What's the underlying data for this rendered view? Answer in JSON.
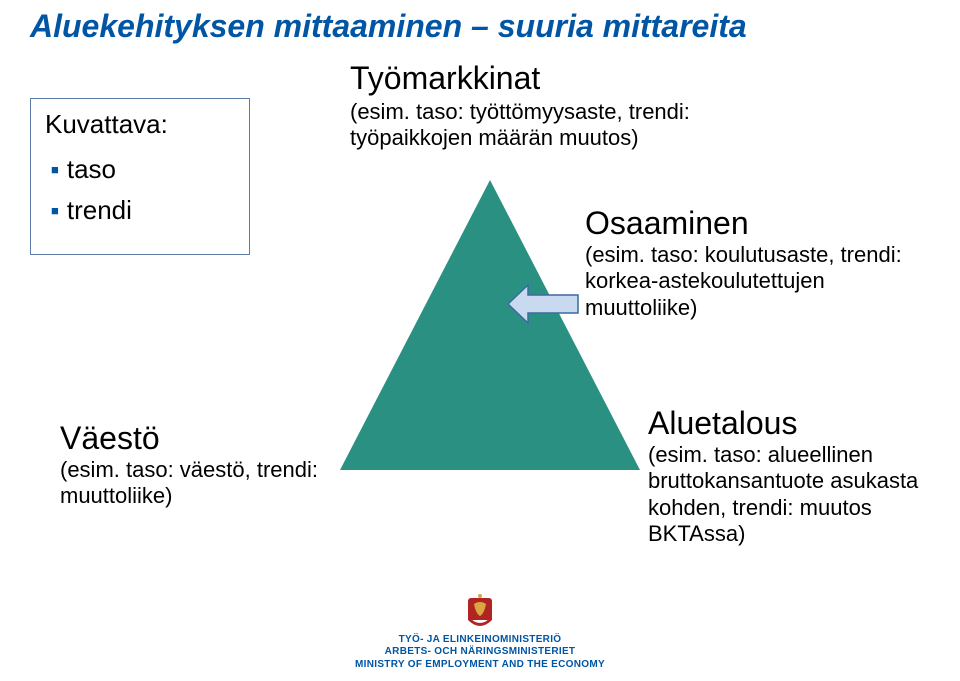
{
  "colors": {
    "title": "#0055a5",
    "bullet": "#0055a5",
    "text": "#000000",
    "box_border": "#5b7ca8",
    "triangle_fill": "#2a9182",
    "arrow_fill": "#c9d9ef",
    "arrow_border": "#3b6aa0",
    "footer_text": "#0055a5",
    "crest_gold": "#d9a63f",
    "crest_red": "#b02424",
    "background": "#ffffff"
  },
  "layout": {
    "slide_w": 960,
    "slide_h": 681,
    "triangle_base": 300,
    "triangle_height": 290
  },
  "type": "infographic",
  "title": "Aluekehityksen mittaaminen – suuria mittareita",
  "kuvattava": {
    "heading": "Kuvattava:",
    "items": [
      "taso",
      "trendi"
    ]
  },
  "tyomarkkinat": {
    "heading": "Työmarkkinat",
    "sub": "(esim. taso: työttömyysaste, trendi: työpaikkojen määrän muutos)"
  },
  "osaaminen": {
    "heading": "Osaaminen",
    "sub": "(esim. taso: koulutusaste, trendi: korkea-astekoulutettujen muuttoliike)"
  },
  "vaesto": {
    "heading": "Väestö",
    "sub": "(esim. taso: väestö, trendi: muuttoliike)"
  },
  "aluetalous": {
    "heading": "Aluetalous",
    "sub": "(esim. taso: alueellinen bruttokansantuote asukasta kohden, trendi: muutos BKTAssa)"
  },
  "footer": {
    "line1": "TYÖ- JA ELINKEINOMINISTERIÖ",
    "line2": "ARBETS- OCH NÄRINGSMINISTERIET",
    "line3": "MINISTRY OF EMPLOYMENT AND THE ECONOMY"
  }
}
